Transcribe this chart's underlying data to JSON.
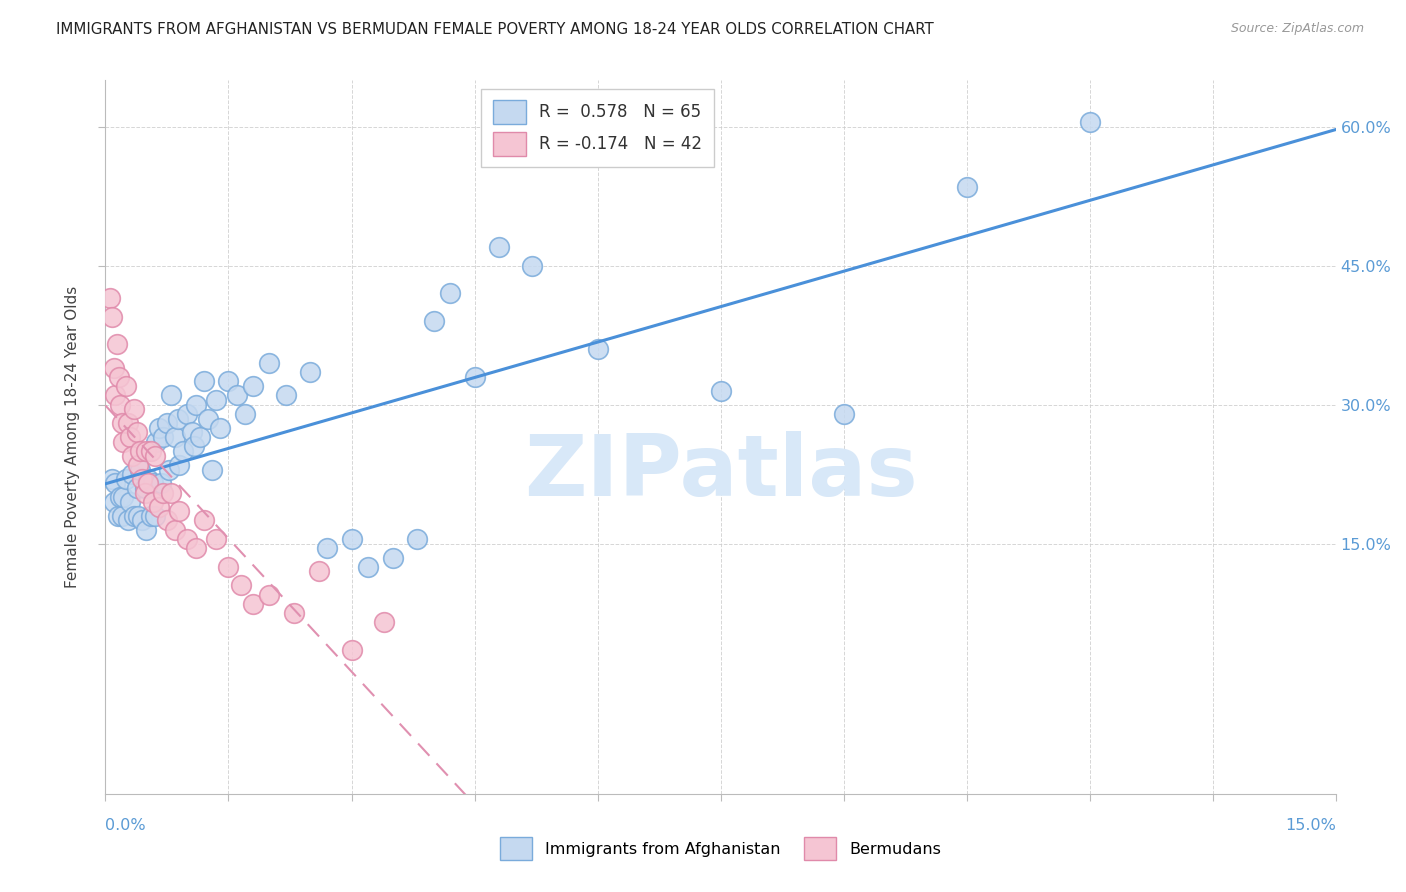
{
  "title": "IMMIGRANTS FROM AFGHANISTAN VS BERMUDAN FEMALE POVERTY AMONG 18-24 YEAR OLDS CORRELATION CHART",
  "source": "Source: ZipAtlas.com",
  "ylabel": "Female Poverty Among 18-24 Year Olds",
  "legend_label1": "Immigrants from Afghanistan",
  "legend_label2": "Bermudans",
  "R1": 0.578,
  "N1": 65,
  "R2": -0.174,
  "N2": 42,
  "color_blue_fill": "#c5d9f0",
  "color_blue_edge": "#7aabdb",
  "color_blue_line": "#4a90d9",
  "color_pink_fill": "#f5c5d3",
  "color_pink_edge": "#e08aaa",
  "color_pink_line": "#e090b0",
  "color_axis_label": "#5b9bd5",
  "watermark_color": "#d8e8f8",
  "watermark": "ZIPatlas",
  "xmin": 0.0,
  "xmax": 0.15,
  "ymin": -0.12,
  "ymax": 0.65,
  "right_yticks": [
    0.15,
    0.3,
    0.45,
    0.6
  ],
  "right_ylabels": [
    "15.0%",
    "30.0%",
    "45.0%",
    "60.0%"
  ],
  "afghanistan_x": [
    0.0008,
    0.001,
    0.0012,
    0.0015,
    0.0018,
    0.002,
    0.0022,
    0.0025,
    0.0028,
    0.003,
    0.0032,
    0.0035,
    0.0038,
    0.004,
    0.0042,
    0.0045,
    0.0048,
    0.005,
    0.0052,
    0.0055,
    0.0058,
    0.006,
    0.0062,
    0.0065,
    0.0068,
    0.007,
    0.0075,
    0.0078,
    0.008,
    0.0085,
    0.0088,
    0.009,
    0.0095,
    0.01,
    0.0105,
    0.0108,
    0.011,
    0.0115,
    0.012,
    0.0125,
    0.013,
    0.0135,
    0.014,
    0.015,
    0.016,
    0.017,
    0.018,
    0.02,
    0.022,
    0.025,
    0.027,
    0.03,
    0.032,
    0.035,
    0.038,
    0.04,
    0.042,
    0.045,
    0.048,
    0.052,
    0.06,
    0.075,
    0.09,
    0.105,
    0.12
  ],
  "afghanistan_y": [
    0.22,
    0.195,
    0.215,
    0.18,
    0.2,
    0.18,
    0.2,
    0.22,
    0.175,
    0.195,
    0.225,
    0.18,
    0.21,
    0.18,
    0.23,
    0.175,
    0.21,
    0.165,
    0.22,
    0.18,
    0.215,
    0.18,
    0.26,
    0.275,
    0.215,
    0.265,
    0.28,
    0.23,
    0.31,
    0.265,
    0.285,
    0.235,
    0.25,
    0.29,
    0.27,
    0.255,
    0.3,
    0.265,
    0.325,
    0.285,
    0.23,
    0.305,
    0.275,
    0.325,
    0.31,
    0.29,
    0.32,
    0.345,
    0.31,
    0.335,
    0.145,
    0.155,
    0.125,
    0.135,
    0.155,
    0.39,
    0.42,
    0.33,
    0.47,
    0.45,
    0.36,
    0.315,
    0.29,
    0.535,
    0.605
  ],
  "bermudan_x": [
    0.0005,
    0.0008,
    0.001,
    0.0012,
    0.0014,
    0.0016,
    0.0018,
    0.002,
    0.0022,
    0.0025,
    0.0028,
    0.003,
    0.0032,
    0.0035,
    0.0038,
    0.004,
    0.0042,
    0.0045,
    0.0048,
    0.005,
    0.0052,
    0.0055,
    0.0058,
    0.006,
    0.0065,
    0.007,
    0.0075,
    0.008,
    0.0085,
    0.009,
    0.01,
    0.011,
    0.012,
    0.0135,
    0.015,
    0.0165,
    0.018,
    0.02,
    0.023,
    0.026,
    0.03,
    0.034
  ],
  "bermudan_y": [
    0.415,
    0.395,
    0.34,
    0.31,
    0.365,
    0.33,
    0.3,
    0.28,
    0.26,
    0.32,
    0.28,
    0.265,
    0.245,
    0.295,
    0.27,
    0.235,
    0.25,
    0.22,
    0.205,
    0.25,
    0.215,
    0.25,
    0.195,
    0.245,
    0.19,
    0.205,
    0.175,
    0.205,
    0.165,
    0.185,
    0.155,
    0.145,
    0.175,
    0.155,
    0.125,
    0.105,
    0.085,
    0.095,
    0.075,
    0.12,
    0.035,
    0.065
  ]
}
